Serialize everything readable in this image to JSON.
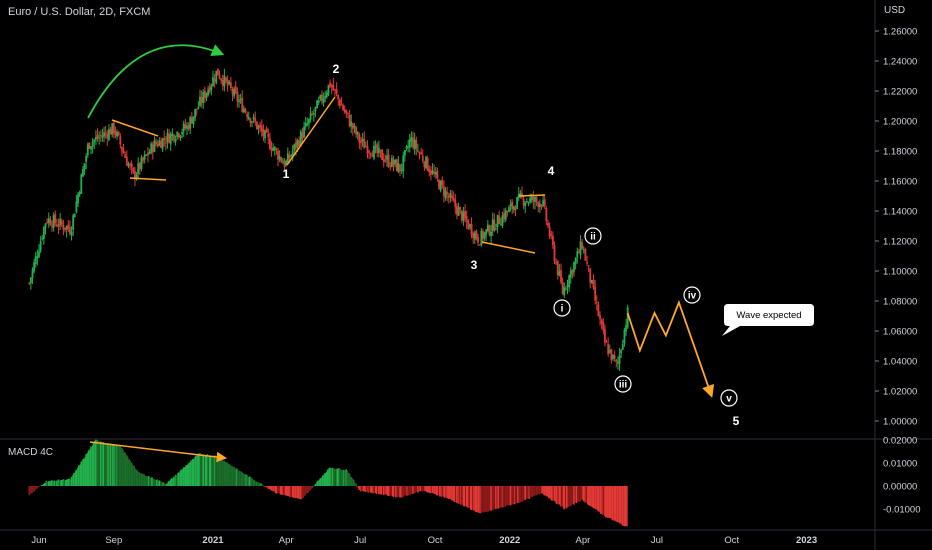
{
  "header": {
    "symbol_title": "Euro / U.S. Dollar, 2D, FXCM",
    "currency": "USD",
    "macd_title": "MACD 4C"
  },
  "colors": {
    "background": "#000000",
    "up": "#26a69a",
    "up_bright": "#22b14c",
    "down": "#e53935",
    "annotation": "#ffa726",
    "arrow_green": "#2ecc40",
    "macd_up_bright": "#22b14c",
    "macd_up_dark": "#1b6e2a",
    "macd_down_bright": "#e53935",
    "macd_down_dark": "#8b1a1a"
  },
  "chart_data": [
    {
      "type": "candlestick",
      "title": "Euro / U.S. Dollar, 2D, FXCM",
      "ylabel": "USD",
      "ylim": [
        0.99,
        1.27
      ],
      "y_ticks": [
        "1.26000",
        "1.24000",
        "1.22000",
        "1.20000",
        "1.18000",
        "1.16000",
        "1.14000",
        "1.12000",
        "1.10000",
        "1.08000",
        "1.06000",
        "1.04000",
        "1.02000",
        "1.00000"
      ],
      "x_ticks": [
        "Jun",
        "Sep",
        "2021",
        "Apr",
        "Jul",
        "Oct",
        "2022",
        "Apr",
        "Jul",
        "Oct",
        "2023"
      ],
      "price_path_keypoints": [
        {
          "date": "2020-05-20",
          "close": 1.092
        },
        {
          "date": "2020-06-10",
          "close": 1.135
        },
        {
          "date": "2020-07-10",
          "close": 1.128
        },
        {
          "date": "2020-08-01",
          "close": 1.185
        },
        {
          "date": "2020-09-01",
          "close": 1.195
        },
        {
          "date": "2020-09-25",
          "close": 1.163
        },
        {
          "date": "2020-10-20",
          "close": 1.184
        },
        {
          "date": "2020-11-30",
          "close": 1.196
        },
        {
          "date": "2021-01-06",
          "close": 1.233
        },
        {
          "date": "2021-03-31",
          "close": 1.171
        },
        {
          "date": "2021-05-25",
          "close": 1.225
        },
        {
          "date": "2021-07-01",
          "close": 1.186
        },
        {
          "date": "2021-08-20",
          "close": 1.168
        },
        {
          "date": "2021-09-01",
          "close": 1.188
        },
        {
          "date": "2021-10-10",
          "close": 1.155
        },
        {
          "date": "2021-11-24",
          "close": 1.121
        },
        {
          "date": "2022-01-14",
          "close": 1.148
        },
        {
          "date": "2022-02-10",
          "close": 1.146
        },
        {
          "date": "2022-03-07",
          "close": 1.086
        },
        {
          "date": "2022-03-31",
          "close": 1.118
        },
        {
          "date": "2022-04-28",
          "close": 1.052
        },
        {
          "date": "2022-05-13",
          "close": 1.036
        },
        {
          "date": "2022-05-26",
          "close": 1.072
        }
      ],
      "wave_labels": [
        "1",
        "2",
        "3",
        "4",
        "5"
      ],
      "sub_wave_labels": [
        "i",
        "ii",
        "iii",
        "iv",
        "v"
      ],
      "callout": "Wave expected",
      "projection": [
        {
          "date": "2022-05-26",
          "value": 1.072
        },
        {
          "date": "2022-06-10",
          "value": 1.047
        },
        {
          "date": "2022-06-28",
          "value": 1.072
        },
        {
          "date": "2022-07-12",
          "value": 1.057
        },
        {
          "date": "2022-07-28",
          "value": 1.079
        },
        {
          "date": "2022-09-06",
          "value": 1.017
        }
      ]
    },
    {
      "type": "bar",
      "title": "MACD 4C",
      "ylim": [
        -0.019,
        0.023
      ],
      "y_ticks": [
        "0.02000",
        "0.01000",
        "0.00000",
        "-0.01000"
      ],
      "histogram_keypoints": [
        {
          "date": "2020-05-20",
          "value": -0.004
        },
        {
          "date": "2020-06-10",
          "value": 0.002
        },
        {
          "date": "2020-07-10",
          "value": 0.003
        },
        {
          "date": "2020-08-10",
          "value": 0.02
        },
        {
          "date": "2020-09-10",
          "value": 0.017
        },
        {
          "date": "2020-10-01",
          "value": 0.006
        },
        {
          "date": "2020-11-05",
          "value": 0.001
        },
        {
          "date": "2020-12-15",
          "value": 0.014
        },
        {
          "date": "2021-01-06",
          "value": 0.013
        },
        {
          "date": "2021-02-10",
          "value": 0.005
        },
        {
          "date": "2021-03-20",
          "value": -0.003
        },
        {
          "date": "2021-04-20",
          "value": -0.006
        },
        {
          "date": "2021-05-25",
          "value": 0.008
        },
        {
          "date": "2021-06-15",
          "value": 0.007
        },
        {
          "date": "2021-07-01",
          "value": -0.002
        },
        {
          "date": "2021-08-20",
          "value": -0.005
        },
        {
          "date": "2021-09-15",
          "value": -0.002
        },
        {
          "date": "2021-10-15",
          "value": -0.005
        },
        {
          "date": "2021-11-26",
          "value": -0.012
        },
        {
          "date": "2022-01-14",
          "value": -0.007
        },
        {
          "date": "2022-02-10",
          "value": -0.003
        },
        {
          "date": "2022-03-10",
          "value": -0.01
        },
        {
          "date": "2022-03-31",
          "value": -0.006
        },
        {
          "date": "2022-04-28",
          "value": -0.013
        },
        {
          "date": "2022-05-26",
          "value": -0.018
        }
      ]
    }
  ]
}
